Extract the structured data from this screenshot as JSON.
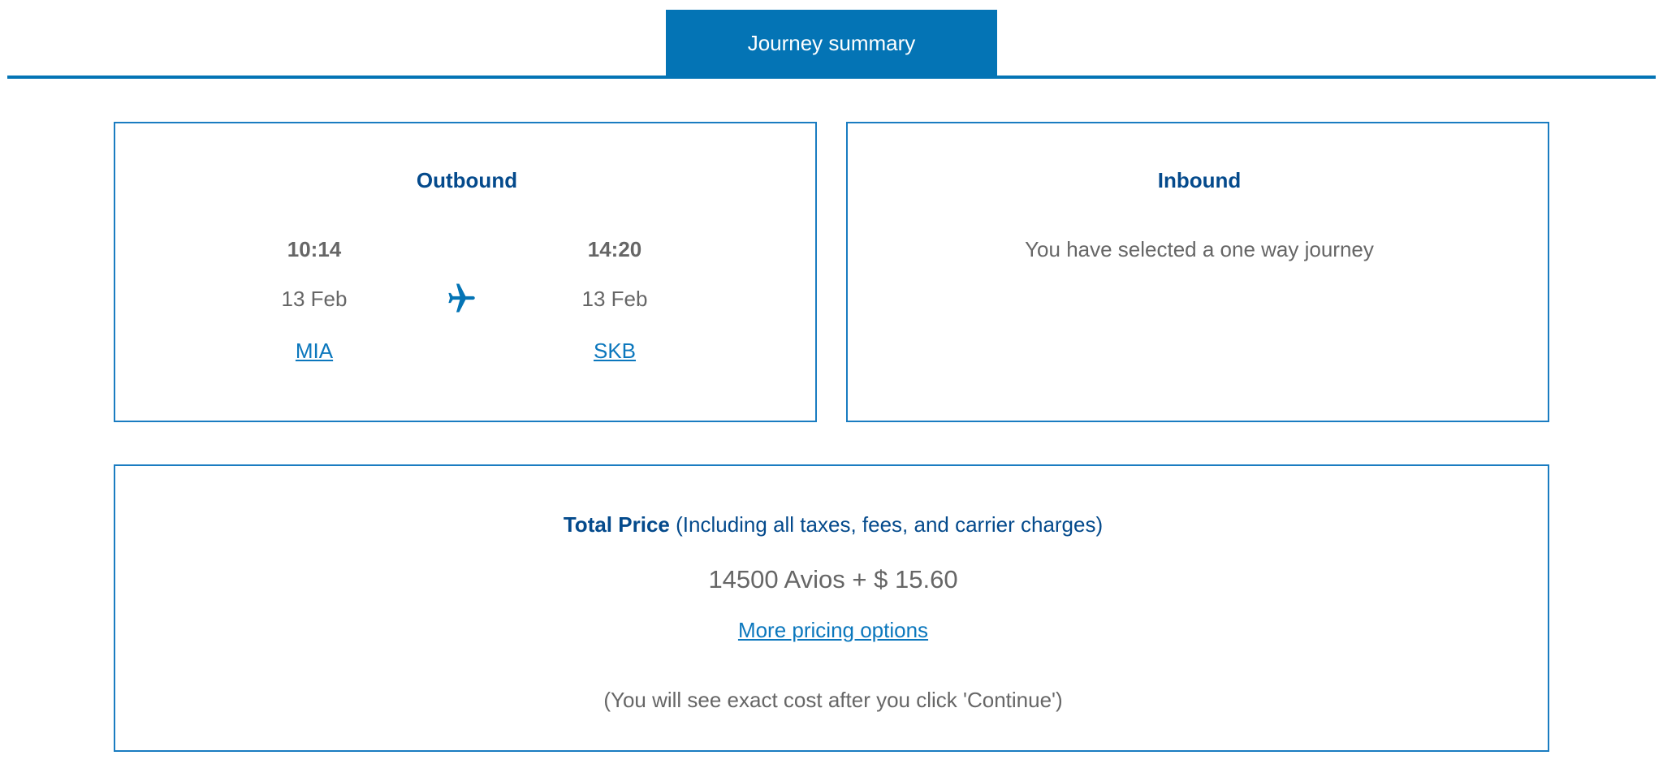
{
  "tab": {
    "label": "Journey summary"
  },
  "outbound": {
    "title": "Outbound",
    "departure": {
      "time": "10:14",
      "date": "13 Feb",
      "airport": "MIA"
    },
    "arrival": {
      "time": "14:20",
      "date": "13 Feb",
      "airport": "SKB"
    },
    "icon": "airplane-icon"
  },
  "inbound": {
    "title": "Inbound",
    "message": "You have selected a one way journey"
  },
  "price": {
    "label": "Total Price",
    "note": "(Including all taxes, fees, and carrier charges)",
    "amount": "14500 Avios + $ 15.60",
    "more_link": "More pricing options",
    "disclaimer": "(You will see exact cost after you click 'Continue')"
  },
  "colors": {
    "accent": "#0474b5",
    "heading": "#044a8c",
    "text": "#666666",
    "link": "#0b77bd"
  }
}
